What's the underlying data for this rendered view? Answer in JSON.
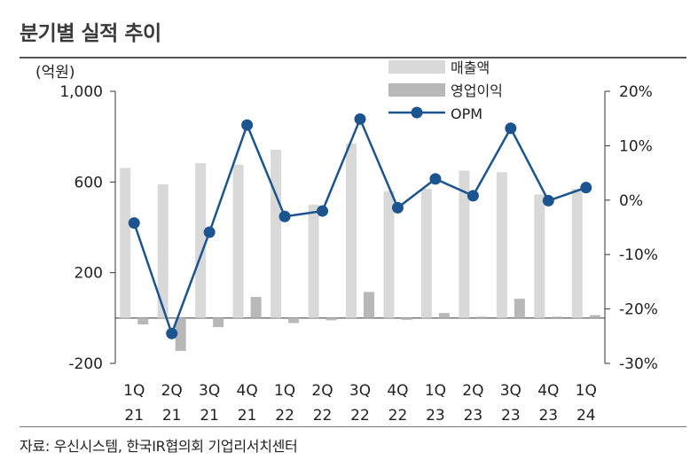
{
  "title": "분기별 실적 추이",
  "source": "자료: 우신시스템, 한국IR협의회 기업리서치센터",
  "chart_data": {
    "type": "bar",
    "unit_label": "(억원)",
    "categories": [
      {
        "q": "1Q",
        "y": "21"
      },
      {
        "q": "2Q",
        "y": "21"
      },
      {
        "q": "3Q",
        "y": "21"
      },
      {
        "q": "4Q",
        "y": "21"
      },
      {
        "q": "1Q",
        "y": "22"
      },
      {
        "q": "2Q",
        "y": "22"
      },
      {
        "q": "3Q",
        "y": "22"
      },
      {
        "q": "4Q",
        "y": "22"
      },
      {
        "q": "1Q",
        "y": "23"
      },
      {
        "q": "2Q",
        "y": "23"
      },
      {
        "q": "3Q",
        "y": "23"
      },
      {
        "q": "4Q",
        "y": "23"
      },
      {
        "q": "1Q",
        "y": "24"
      }
    ],
    "series": [
      {
        "name": "매출액",
        "axis": "left",
        "kind": "bar",
        "color": "#d9d9d9",
        "values": [
          662,
          590,
          683,
          676,
          742,
          500,
          770,
          560,
          570,
          650,
          643,
          545,
          570
        ]
      },
      {
        "name": "영업이익",
        "axis": "left",
        "kind": "bar",
        "color": "#b8b8b8",
        "values": [
          -28,
          -145,
          -40,
          93,
          -22,
          -10,
          115,
          -8,
          22,
          5,
          85,
          0,
          13
        ]
      },
      {
        "name": "OPM",
        "axis": "right",
        "kind": "line",
        "color": "#1c5490",
        "values": [
          -4.2,
          -24.5,
          -5.9,
          13.8,
          -3.0,
          -2.0,
          14.9,
          -1.4,
          3.9,
          0.8,
          13.2,
          -0.1,
          2.3
        ]
      }
    ],
    "y_left": {
      "min": -200,
      "max": 1000,
      "ticks": [
        {
          "v": 1000,
          "label": "1,000"
        },
        {
          "v": 600,
          "label": "600"
        },
        {
          "v": 200,
          "label": "200"
        },
        {
          "v": -200,
          "label": "-200"
        }
      ]
    },
    "y_right": {
      "min": -30,
      "max": 20,
      "ticks": [
        {
          "v": 20,
          "label": "20%"
        },
        {
          "v": 10,
          "label": "10%"
        },
        {
          "v": 0,
          "label": "0%"
        },
        {
          "v": -10,
          "label": "-10%"
        },
        {
          "v": -20,
          "label": "-20%"
        },
        {
          "v": -30,
          "label": "-30%"
        }
      ]
    },
    "legend": [
      "매출액",
      "영업이익",
      "OPM"
    ]
  }
}
